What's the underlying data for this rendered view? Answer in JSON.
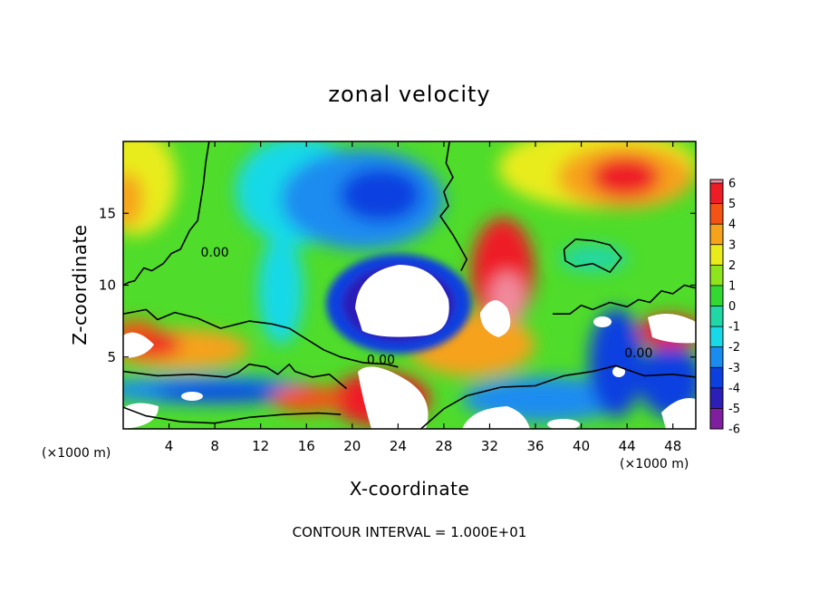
{
  "chart_data": {
    "type": "heatmap",
    "title": "zonal velocity",
    "xlabel": "X-coordinate",
    "ylabel": "Z-coordinate",
    "x_unit_left": "(×1000 m)",
    "x_unit_right": "(×1000 m)",
    "xlim": [
      0,
      50
    ],
    "ylim": [
      0,
      20
    ],
    "x_ticks": [
      4,
      8,
      12,
      16,
      20,
      24,
      28,
      32,
      36,
      40,
      44,
      48
    ],
    "y_ticks": [
      5,
      10,
      15
    ],
    "colorbar": {
      "levels": [
        -6,
        -5,
        -4,
        -3,
        -2,
        -1,
        0,
        1,
        2,
        3,
        4,
        5,
        6
      ],
      "colors": [
        "#7f1fa0",
        "#2b1fb8",
        "#0b3fe0",
        "#1a8cf0",
        "#17d9e8",
        "#20d7a6",
        "#33d933",
        "#8ee51c",
        "#eaec19",
        "#f6a21a",
        "#f45315",
        "#ee1c25",
        "#f08a9c"
      ],
      "out_of_range_color": "#ffffff",
      "position": "right"
    },
    "contour_labels": [
      {
        "x": 22.5,
        "y": 4.5,
        "text": "0.00"
      },
      {
        "x": 45.0,
        "y": 5.0,
        "text": "0.00"
      },
      {
        "x": 8.0,
        "y": 12.0,
        "text": "0.00"
      }
    ],
    "zero_contours": [
      [
        [
          7.5,
          20
        ],
        [
          7.2,
          18.5
        ],
        [
          7.0,
          17
        ],
        [
          6.8,
          16
        ],
        [
          6.5,
          14.5
        ],
        [
          5.8,
          13.8
        ],
        [
          5.0,
          12.5
        ],
        [
          4.2,
          12.2
        ],
        [
          3.5,
          11.5
        ],
        [
          2.5,
          11.0
        ],
        [
          1.8,
          11.2
        ],
        [
          1.0,
          10.3
        ],
        [
          0.5,
          10.2
        ],
        [
          0,
          10.0
        ]
      ],
      [
        [
          0,
          8.0
        ],
        [
          2.0,
          8.3
        ],
        [
          3.0,
          7.6
        ],
        [
          4.5,
          8.1
        ],
        [
          6.5,
          7.7
        ],
        [
          8.5,
          7.0
        ],
        [
          10.0,
          7.3
        ],
        [
          11.0,
          7.5
        ],
        [
          13.0,
          7.3
        ],
        [
          14.5,
          7.0
        ],
        [
          15.5,
          6.5
        ],
        [
          16.5,
          6.0
        ],
        [
          17.5,
          5.5
        ],
        [
          19.0,
          5.0
        ],
        [
          21.0,
          4.6
        ],
        [
          23.0,
          4.5
        ],
        [
          24.0,
          4.3
        ]
      ],
      [
        [
          0,
          4.0
        ],
        [
          3.0,
          3.7
        ],
        [
          6.0,
          3.8
        ],
        [
          9.0,
          3.6
        ],
        [
          10.0,
          3.9
        ],
        [
          11.0,
          4.5
        ],
        [
          12.5,
          4.3
        ],
        [
          13.5,
          3.8
        ],
        [
          14.5,
          4.5
        ],
        [
          15.0,
          4.0
        ],
        [
          16.5,
          3.6
        ],
        [
          18.0,
          3.8
        ],
        [
          19.5,
          2.8
        ]
      ],
      [
        [
          0,
          1.5
        ],
        [
          2.0,
          0.9
        ],
        [
          5.0,
          0.5
        ],
        [
          8.0,
          0.4
        ],
        [
          11.0,
          0.8
        ],
        [
          14.0,
          1.0
        ],
        [
          17.0,
          1.1
        ],
        [
          19.0,
          1.0
        ]
      ],
      [
        [
          26.0,
          0
        ],
        [
          28.0,
          1.4
        ],
        [
          30.0,
          2.3
        ],
        [
          33.0,
          2.9
        ],
        [
          36.0,
          3.0
        ],
        [
          38.5,
          3.7
        ],
        [
          41.0,
          4.0
        ],
        [
          43.0,
          4.4
        ],
        [
          45.5,
          3.7
        ],
        [
          48.0,
          3.8
        ],
        [
          50,
          3.6
        ]
      ],
      [
        [
          28.5,
          20
        ],
        [
          28.2,
          18.5
        ],
        [
          28.8,
          17.5
        ],
        [
          28.0,
          16.5
        ],
        [
          28.4,
          15.5
        ],
        [
          27.7,
          14.8
        ],
        [
          28.8,
          13.5
        ],
        [
          29.3,
          12.8
        ],
        [
          30.0,
          11.8
        ],
        [
          29.5,
          11.0
        ]
      ],
      [
        [
          37.5,
          8.0
        ],
        [
          39.0,
          8.0
        ],
        [
          40.0,
          8.6
        ],
        [
          41.0,
          8.3
        ],
        [
          42.5,
          8.8
        ],
        [
          44.0,
          8.5
        ],
        [
          45.0,
          9.0
        ],
        [
          46.0,
          8.8
        ],
        [
          47.0,
          9.6
        ],
        [
          48.0,
          9.4
        ],
        [
          49.0,
          10.0
        ],
        [
          50,
          9.8
        ]
      ],
      [
        [
          38.5,
          12.5
        ],
        [
          39.5,
          13.2
        ],
        [
          41.0,
          13.1
        ],
        [
          42.5,
          12.8
        ],
        [
          43.5,
          11.9
        ],
        [
          42.5,
          10.9
        ],
        [
          41.0,
          11.5
        ],
        [
          39.5,
          11.3
        ],
        [
          38.6,
          11.7
        ],
        [
          38.5,
          12.5
        ]
      ]
    ],
    "contour_interval_note": "CONTOUR INTERVAL = 1.000E+01"
  }
}
